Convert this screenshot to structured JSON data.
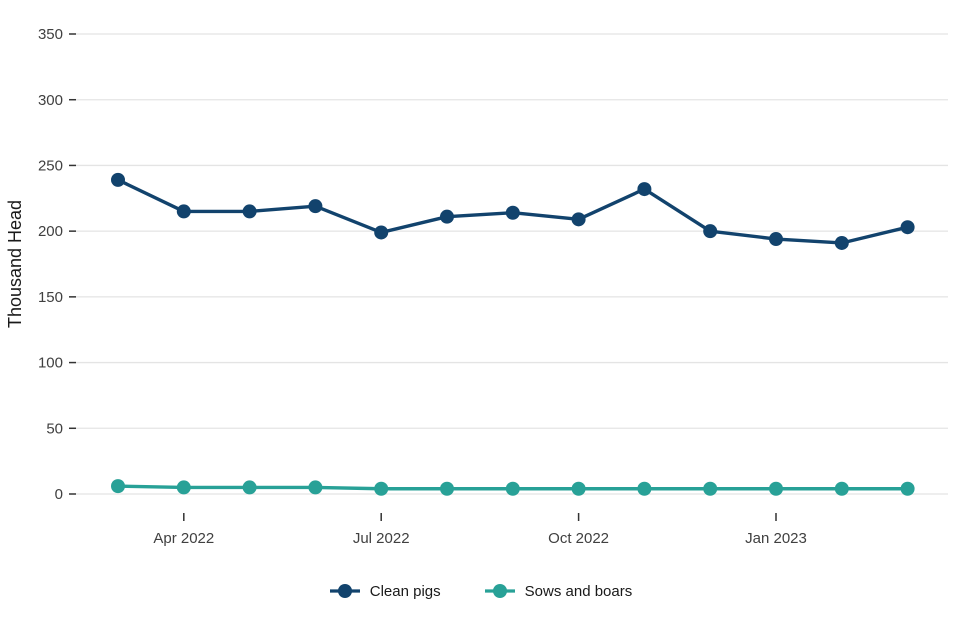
{
  "chart_data": {
    "type": "line",
    "title": "",
    "ylabel": "Thousand Head",
    "xlabel": "",
    "ylim": [
      0,
      350
    ],
    "yticks": [
      0,
      50,
      100,
      150,
      200,
      250,
      300,
      350
    ],
    "categories": [
      "Mar 2022",
      "Apr 2022",
      "May 2022",
      "Jun 2022",
      "Jul 2022",
      "Aug 2022",
      "Sep 2022",
      "Oct 2022",
      "Nov 2022",
      "Dec 2022",
      "Jan 2023",
      "Feb 2023",
      "Mar 2023"
    ],
    "xticks": [
      {
        "index": 1,
        "label": "Apr 2022"
      },
      {
        "index": 4,
        "label": "Jul 2022"
      },
      {
        "index": 7,
        "label": "Oct 2022"
      },
      {
        "index": 10,
        "label": "Jan 2023"
      }
    ],
    "series": [
      {
        "name": "Clean pigs",
        "color": "#12436D",
        "values": [
          239,
          215,
          215,
          219,
          199,
          211,
          214,
          209,
          232,
          200,
          194,
          191,
          203
        ]
      },
      {
        "name": "Sows and boars",
        "color": "#28A197",
        "values": [
          6,
          5,
          5,
          5,
          4,
          4,
          4,
          4,
          4,
          4,
          4,
          4,
          4
        ]
      }
    ],
    "grid": "horizontal",
    "legend_position": "bottom",
    "colors": {
      "grid": "#e4e4e4",
      "tick": "#333333",
      "tick_label": "#404040",
      "axis_title": "#1a1a1a",
      "background": "#ffffff"
    }
  }
}
